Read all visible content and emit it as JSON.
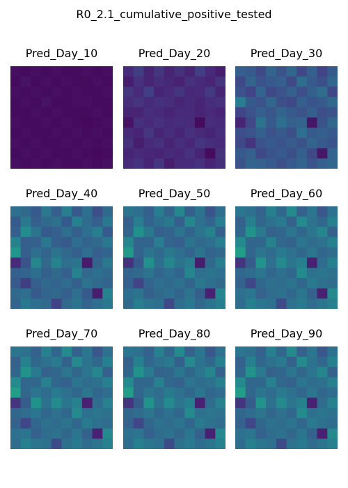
{
  "chart_data": {
    "type": "heatmap",
    "title": "R0_2.1_cumulative_positive_tested",
    "grid_size": 10,
    "colormap": "viridis",
    "color_range": [
      0,
      1
    ],
    "axes_visible": false,
    "panels": [
      {
        "title": "Pred_Day_10",
        "values": [
          [
            0.04,
            0.03,
            0.04,
            0.03,
            0.04,
            0.03,
            0.03,
            0.04,
            0.03,
            0.04
          ],
          [
            0.03,
            0.05,
            0.03,
            0.04,
            0.03,
            0.04,
            0.03,
            0.03,
            0.04,
            0.03
          ],
          [
            0.04,
            0.03,
            0.04,
            0.03,
            0.04,
            0.03,
            0.04,
            0.03,
            0.03,
            0.04
          ],
          [
            0.03,
            0.04,
            0.03,
            0.05,
            0.03,
            0.03,
            0.04,
            0.04,
            0.03,
            0.03
          ],
          [
            0.03,
            0.03,
            0.04,
            0.03,
            0.04,
            0.03,
            0.03,
            0.03,
            0.04,
            0.03
          ],
          [
            0.04,
            0.03,
            0.03,
            0.04,
            0.03,
            0.04,
            0.03,
            0.02,
            0.03,
            0.04
          ],
          [
            0.03,
            0.04,
            0.03,
            0.03,
            0.04,
            0.03,
            0.04,
            0.03,
            0.04,
            0.03
          ],
          [
            0.04,
            0.03,
            0.04,
            0.03,
            0.03,
            0.04,
            0.03,
            0.04,
            0.03,
            0.04
          ],
          [
            0.03,
            0.04,
            0.03,
            0.04,
            0.03,
            0.03,
            0.04,
            0.03,
            0.02,
            0.03
          ],
          [
            0.04,
            0.03,
            0.04,
            0.03,
            0.04,
            0.03,
            0.03,
            0.04,
            0.03,
            0.04
          ]
        ]
      },
      {
        "title": "Pred_Day_20",
        "values": [
          [
            0.12,
            0.18,
            0.1,
            0.16,
            0.1,
            0.14,
            0.1,
            0.18,
            0.12,
            0.08
          ],
          [
            0.08,
            0.14,
            0.1,
            0.13,
            0.11,
            0.09,
            0.14,
            0.12,
            0.1,
            0.15
          ],
          [
            0.16,
            0.12,
            0.18,
            0.1,
            0.12,
            0.15,
            0.11,
            0.12,
            0.17,
            0.1
          ],
          [
            0.13,
            0.15,
            0.12,
            0.14,
            0.13,
            0.1,
            0.12,
            0.1,
            0.13,
            0.14
          ],
          [
            0.1,
            0.1,
            0.13,
            0.12,
            0.1,
            0.12,
            0.12,
            0.1,
            0.12,
            0.1
          ],
          [
            0.05,
            0.14,
            0.12,
            0.14,
            0.12,
            0.13,
            0.12,
            0.03,
            0.13,
            0.12
          ],
          [
            0.12,
            0.1,
            0.16,
            0.1,
            0.13,
            0.1,
            0.14,
            0.12,
            0.1,
            0.13
          ],
          [
            0.14,
            0.08,
            0.12,
            0.14,
            0.1,
            0.13,
            0.11,
            0.15,
            0.13,
            0.12
          ],
          [
            0.1,
            0.12,
            0.11,
            0.1,
            0.12,
            0.11,
            0.14,
            0.1,
            0.03,
            0.14
          ],
          [
            0.12,
            0.14,
            0.1,
            0.16,
            0.08,
            0.12,
            0.12,
            0.14,
            0.1,
            0.13
          ]
        ]
      },
      {
        "title": "Pred_Day_30",
        "values": [
          [
            0.3,
            0.28,
            0.22,
            0.32,
            0.25,
            0.33,
            0.22,
            0.3,
            0.2,
            0.28
          ],
          [
            0.22,
            0.32,
            0.25,
            0.28,
            0.3,
            0.22,
            0.35,
            0.28,
            0.24,
            0.33
          ],
          [
            0.25,
            0.2,
            0.32,
            0.22,
            0.25,
            0.3,
            0.24,
            0.3,
            0.35,
            0.22
          ],
          [
            0.42,
            0.28,
            0.25,
            0.33,
            0.24,
            0.22,
            0.3,
            0.26,
            0.28,
            0.34
          ],
          [
            0.2,
            0.25,
            0.3,
            0.27,
            0.32,
            0.28,
            0.25,
            0.3,
            0.24,
            0.26
          ],
          [
            0.1,
            0.22,
            0.38,
            0.28,
            0.36,
            0.3,
            0.32,
            0.06,
            0.26,
            0.33
          ],
          [
            0.24,
            0.26,
            0.3,
            0.25,
            0.28,
            0.24,
            0.36,
            0.28,
            0.3,
            0.28
          ],
          [
            0.22,
            0.15,
            0.25,
            0.28,
            0.26,
            0.29,
            0.25,
            0.32,
            0.28,
            0.26
          ],
          [
            0.28,
            0.3,
            0.22,
            0.26,
            0.28,
            0.24,
            0.3,
            0.22,
            0.06,
            0.32
          ],
          [
            0.26,
            0.32,
            0.3,
            0.28,
            0.24,
            0.28,
            0.32,
            0.26,
            0.3,
            0.33
          ]
        ]
      },
      {
        "title": "Pred_Day_40",
        "values": [
          [
            0.36,
            0.34,
            0.28,
            0.4,
            0.3,
            0.42,
            0.28,
            0.36,
            0.24,
            0.34
          ],
          [
            0.28,
            0.4,
            0.3,
            0.34,
            0.37,
            0.28,
            0.43,
            0.35,
            0.3,
            0.4
          ],
          [
            0.3,
            0.48,
            0.38,
            0.28,
            0.3,
            0.36,
            0.3,
            0.36,
            0.42,
            0.28
          ],
          [
            0.44,
            0.3,
            0.3,
            0.4,
            0.3,
            0.28,
            0.36,
            0.32,
            0.34,
            0.4
          ],
          [
            0.52,
            0.3,
            0.36,
            0.32,
            0.38,
            0.34,
            0.3,
            0.36,
            0.3,
            0.32
          ],
          [
            0.12,
            0.26,
            0.46,
            0.34,
            0.44,
            0.36,
            0.38,
            0.07,
            0.32,
            0.4
          ],
          [
            0.3,
            0.32,
            0.36,
            0.3,
            0.34,
            0.3,
            0.44,
            0.34,
            0.36,
            0.34
          ],
          [
            0.28,
            0.18,
            0.3,
            0.34,
            0.32,
            0.35,
            0.3,
            0.38,
            0.34,
            0.32
          ],
          [
            0.34,
            0.36,
            0.28,
            0.32,
            0.34,
            0.3,
            0.36,
            0.28,
            0.08,
            0.44
          ],
          [
            0.32,
            0.4,
            0.36,
            0.34,
            0.2,
            0.34,
            0.38,
            0.32,
            0.36,
            0.4
          ]
        ]
      },
      {
        "title": "Pred_Day_50",
        "values": [
          [
            0.38,
            0.36,
            0.3,
            0.42,
            0.32,
            0.46,
            0.3,
            0.38,
            0.26,
            0.36
          ],
          [
            0.3,
            0.42,
            0.32,
            0.36,
            0.4,
            0.3,
            0.46,
            0.37,
            0.32,
            0.42
          ],
          [
            0.32,
            0.5,
            0.4,
            0.3,
            0.32,
            0.38,
            0.32,
            0.38,
            0.44,
            0.3
          ],
          [
            0.46,
            0.32,
            0.32,
            0.42,
            0.32,
            0.3,
            0.38,
            0.34,
            0.36,
            0.42
          ],
          [
            0.54,
            0.32,
            0.38,
            0.34,
            0.4,
            0.36,
            0.32,
            0.38,
            0.32,
            0.34
          ],
          [
            0.14,
            0.28,
            0.5,
            0.36,
            0.46,
            0.38,
            0.42,
            0.08,
            0.34,
            0.42
          ],
          [
            0.32,
            0.34,
            0.38,
            0.32,
            0.36,
            0.32,
            0.46,
            0.36,
            0.38,
            0.36
          ],
          [
            0.3,
            0.2,
            0.32,
            0.36,
            0.34,
            0.37,
            0.32,
            0.4,
            0.36,
            0.34
          ],
          [
            0.36,
            0.38,
            0.3,
            0.34,
            0.36,
            0.32,
            0.38,
            0.3,
            0.09,
            0.46
          ],
          [
            0.34,
            0.42,
            0.38,
            0.36,
            0.22,
            0.36,
            0.4,
            0.34,
            0.38,
            0.42
          ]
        ]
      },
      {
        "title": "Pred_Day_60",
        "values": [
          [
            0.39,
            0.37,
            0.31,
            0.43,
            0.33,
            0.47,
            0.31,
            0.39,
            0.27,
            0.37
          ],
          [
            0.31,
            0.43,
            0.33,
            0.37,
            0.41,
            0.31,
            0.47,
            0.38,
            0.33,
            0.43
          ],
          [
            0.33,
            0.51,
            0.41,
            0.31,
            0.33,
            0.39,
            0.33,
            0.39,
            0.46,
            0.31
          ],
          [
            0.47,
            0.33,
            0.33,
            0.43,
            0.33,
            0.31,
            0.39,
            0.35,
            0.37,
            0.43
          ],
          [
            0.55,
            0.33,
            0.39,
            0.35,
            0.41,
            0.37,
            0.33,
            0.39,
            0.33,
            0.35
          ],
          [
            0.15,
            0.29,
            0.51,
            0.37,
            0.47,
            0.39,
            0.43,
            0.09,
            0.35,
            0.43
          ],
          [
            0.33,
            0.35,
            0.39,
            0.33,
            0.37,
            0.33,
            0.47,
            0.37,
            0.39,
            0.37
          ],
          [
            0.31,
            0.21,
            0.33,
            0.37,
            0.35,
            0.38,
            0.33,
            0.41,
            0.37,
            0.35
          ],
          [
            0.37,
            0.39,
            0.31,
            0.35,
            0.37,
            0.33,
            0.39,
            0.31,
            0.09,
            0.47
          ],
          [
            0.35,
            0.43,
            0.39,
            0.37,
            0.23,
            0.37,
            0.41,
            0.35,
            0.39,
            0.43
          ]
        ]
      },
      {
        "title": "Pred_Day_70",
        "values": [
          [
            0.39,
            0.37,
            0.31,
            0.43,
            0.33,
            0.47,
            0.31,
            0.39,
            0.27,
            0.37
          ],
          [
            0.31,
            0.43,
            0.33,
            0.37,
            0.41,
            0.31,
            0.47,
            0.38,
            0.33,
            0.43
          ],
          [
            0.33,
            0.51,
            0.41,
            0.31,
            0.33,
            0.39,
            0.33,
            0.39,
            0.46,
            0.31
          ],
          [
            0.47,
            0.33,
            0.33,
            0.43,
            0.33,
            0.31,
            0.39,
            0.35,
            0.37,
            0.43
          ],
          [
            0.55,
            0.33,
            0.39,
            0.35,
            0.41,
            0.37,
            0.33,
            0.39,
            0.33,
            0.35
          ],
          [
            0.15,
            0.29,
            0.51,
            0.37,
            0.47,
            0.39,
            0.43,
            0.09,
            0.35,
            0.43
          ],
          [
            0.33,
            0.35,
            0.39,
            0.33,
            0.37,
            0.33,
            0.47,
            0.37,
            0.39,
            0.37
          ],
          [
            0.31,
            0.21,
            0.33,
            0.37,
            0.35,
            0.38,
            0.33,
            0.41,
            0.37,
            0.35
          ],
          [
            0.37,
            0.39,
            0.31,
            0.35,
            0.37,
            0.33,
            0.39,
            0.31,
            0.09,
            0.47
          ],
          [
            0.35,
            0.43,
            0.39,
            0.37,
            0.23,
            0.37,
            0.41,
            0.35,
            0.39,
            0.43
          ]
        ]
      },
      {
        "title": "Pred_Day_80",
        "values": [
          [
            0.39,
            0.37,
            0.31,
            0.43,
            0.33,
            0.47,
            0.31,
            0.39,
            0.27,
            0.37
          ],
          [
            0.31,
            0.43,
            0.33,
            0.37,
            0.41,
            0.31,
            0.47,
            0.38,
            0.33,
            0.43
          ],
          [
            0.33,
            0.51,
            0.41,
            0.31,
            0.33,
            0.39,
            0.33,
            0.39,
            0.46,
            0.31
          ],
          [
            0.47,
            0.33,
            0.33,
            0.43,
            0.33,
            0.31,
            0.39,
            0.35,
            0.37,
            0.43
          ],
          [
            0.55,
            0.33,
            0.39,
            0.35,
            0.41,
            0.37,
            0.33,
            0.39,
            0.33,
            0.35
          ],
          [
            0.15,
            0.29,
            0.51,
            0.37,
            0.47,
            0.39,
            0.43,
            0.09,
            0.35,
            0.43
          ],
          [
            0.33,
            0.35,
            0.39,
            0.33,
            0.37,
            0.33,
            0.47,
            0.37,
            0.39,
            0.37
          ],
          [
            0.31,
            0.21,
            0.33,
            0.37,
            0.35,
            0.38,
            0.33,
            0.41,
            0.37,
            0.35
          ],
          [
            0.37,
            0.39,
            0.31,
            0.35,
            0.37,
            0.33,
            0.39,
            0.31,
            0.09,
            0.47
          ],
          [
            0.35,
            0.43,
            0.39,
            0.37,
            0.23,
            0.37,
            0.41,
            0.35,
            0.39,
            0.43
          ]
        ]
      },
      {
        "title": "Pred_Day_90",
        "values": [
          [
            0.39,
            0.37,
            0.31,
            0.43,
            0.33,
            0.47,
            0.31,
            0.39,
            0.27,
            0.37
          ],
          [
            0.31,
            0.43,
            0.33,
            0.37,
            0.41,
            0.31,
            0.47,
            0.38,
            0.33,
            0.43
          ],
          [
            0.33,
            0.51,
            0.41,
            0.31,
            0.33,
            0.39,
            0.33,
            0.39,
            0.46,
            0.31
          ],
          [
            0.47,
            0.33,
            0.33,
            0.43,
            0.33,
            0.31,
            0.39,
            0.35,
            0.37,
            0.43
          ],
          [
            0.55,
            0.33,
            0.39,
            0.35,
            0.41,
            0.37,
            0.33,
            0.39,
            0.33,
            0.35
          ],
          [
            0.15,
            0.29,
            0.51,
            0.37,
            0.47,
            0.39,
            0.43,
            0.09,
            0.35,
            0.43
          ],
          [
            0.33,
            0.35,
            0.39,
            0.33,
            0.37,
            0.33,
            0.47,
            0.37,
            0.39,
            0.37
          ],
          [
            0.31,
            0.21,
            0.33,
            0.37,
            0.35,
            0.38,
            0.33,
            0.41,
            0.37,
            0.35
          ],
          [
            0.37,
            0.39,
            0.31,
            0.35,
            0.37,
            0.33,
            0.39,
            0.31,
            0.09,
            0.47
          ],
          [
            0.35,
            0.43,
            0.39,
            0.37,
            0.23,
            0.37,
            0.41,
            0.35,
            0.39,
            0.43
          ]
        ]
      }
    ]
  }
}
